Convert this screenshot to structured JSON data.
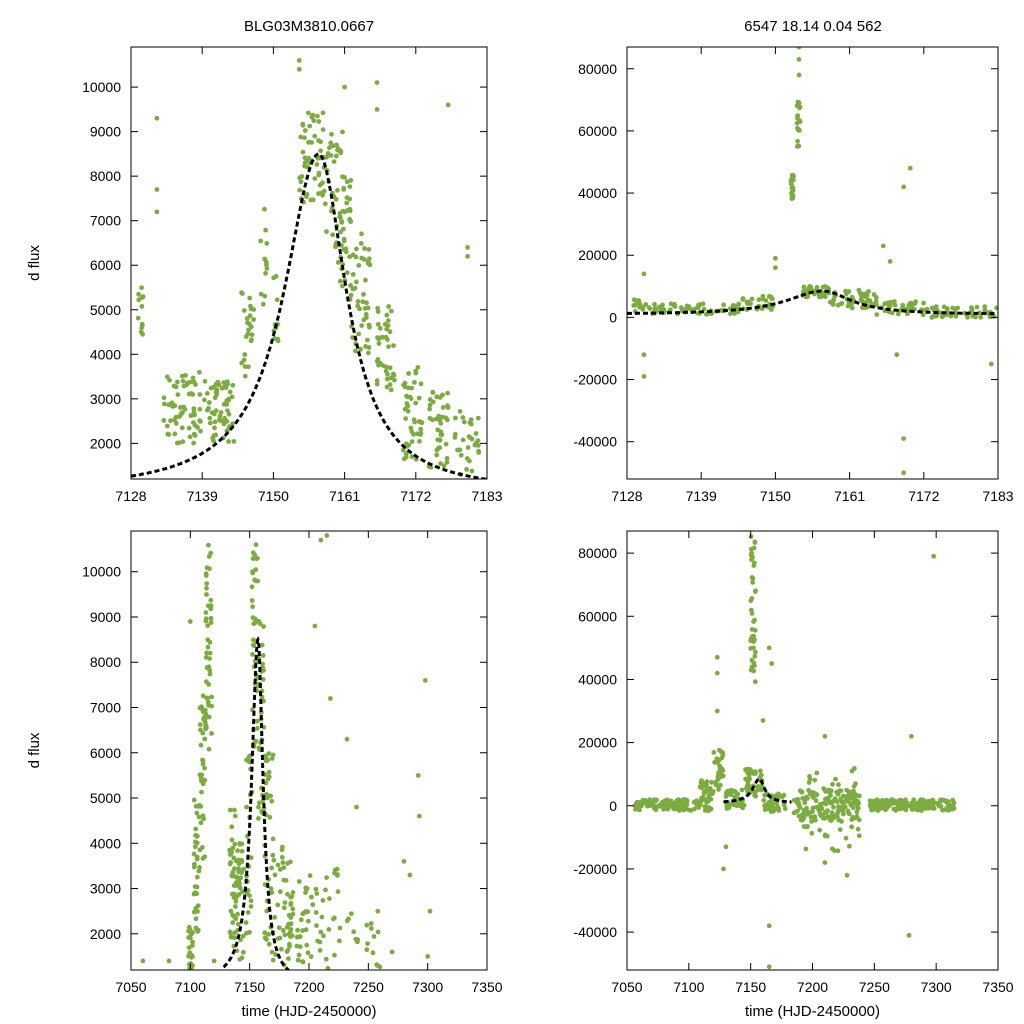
{
  "header": {
    "left_title": "BLG03M3810.0667",
    "right_title": "6547  18.14  0.04  562"
  },
  "colors": {
    "points": "#7cac40",
    "fit": "#000000",
    "frame": "#000000"
  },
  "chart_data": [
    {
      "id": "top-left",
      "type": "scatter",
      "xlim": [
        7128,
        7183
      ],
      "ylim": [
        1200,
        10900
      ],
      "xticks": [
        7128,
        7139,
        7150,
        7161,
        7172,
        7183
      ],
      "yticks": [
        2000,
        3000,
        4000,
        5000,
        6000,
        7000,
        8000,
        9000,
        10000
      ],
      "ylabel": "d flux",
      "xlabel": "",
      "fit": {
        "t0": 7157.0,
        "peak": 8500,
        "base": 900,
        "tau_rise": 6.5,
        "tau_fall": 5.2
      },
      "clusters": [
        [
          7129,
          7130,
          4200,
          5500,
          12
        ],
        [
          7133,
          7140,
          2000,
          3600,
          70
        ],
        [
          7140,
          7144,
          2000,
          3400,
          55
        ],
        [
          7145,
          7147,
          3500,
          5400,
          25
        ],
        [
          7148,
          7149,
          5000,
          7300,
          12
        ],
        [
          7150,
          7151,
          4200,
          6000,
          10
        ],
        [
          7154,
          7158,
          7400,
          9500,
          55
        ],
        [
          7158,
          7161,
          6400,
          9000,
          40
        ],
        [
          7160,
          7162,
          5200,
          8000,
          35
        ],
        [
          7162,
          7165,
          4000,
          6800,
          45
        ],
        [
          7166,
          7169,
          3200,
          5200,
          40
        ],
        [
          7170,
          7173,
          1600,
          3800,
          45
        ],
        [
          7174,
          7177,
          1400,
          3200,
          40
        ],
        [
          7178,
          7182,
          1300,
          2800,
          30
        ]
      ],
      "outliers": [
        [
          7132,
          9300
        ],
        [
          7132,
          7700
        ],
        [
          7132,
          7200
        ],
        [
          7154,
          10600
        ],
        [
          7154,
          10400
        ],
        [
          7161,
          10000
        ],
        [
          7166,
          10100
        ],
        [
          7166,
          9500
        ],
        [
          7177,
          9600
        ],
        [
          7180,
          6400
        ],
        [
          7180,
          6200
        ]
      ]
    },
    {
      "id": "top-right",
      "type": "scatter",
      "xlim": [
        7128,
        7183
      ],
      "ylim": [
        -52000,
        87000
      ],
      "xticks": [
        7128,
        7139,
        7150,
        7161,
        7172,
        7183
      ],
      "yticks": [
        -40000,
        -20000,
        0,
        20000,
        40000,
        60000,
        80000
      ],
      "ylabel": "",
      "xlabel": "",
      "fit": {
        "t0": 7157.0,
        "peak": 8500,
        "base": 900,
        "tau_rise": 6.5,
        "tau_fall": 5.2
      },
      "clusters": [
        [
          7129,
          7131,
          1500,
          6000,
          12
        ],
        [
          7131,
          7145,
          1000,
          4500,
          70
        ],
        [
          7145,
          7150,
          2500,
          7000,
          30
        ],
        [
          7154,
          7158,
          6500,
          10000,
          40
        ],
        [
          7158,
          7165,
          3000,
          9000,
          50
        ],
        [
          7165,
          7172,
          800,
          5500,
          40
        ],
        [
          7172,
          7183,
          0,
          3500,
          50
        ],
        [
          7152.3,
          7152.7,
          38000,
          46000,
          20
        ],
        [
          7153.2,
          7153.7,
          55000,
          70000,
          18
        ]
      ],
      "outliers": [
        [
          7130.5,
          14000
        ],
        [
          7130.5,
          -12000
        ],
        [
          7130.5,
          -19000
        ],
        [
          7150,
          19000
        ],
        [
          7150,
          16000
        ],
        [
          7153.5,
          87000
        ],
        [
          7153.5,
          83000
        ],
        [
          7153.5,
          78000
        ],
        [
          7166,
          23000
        ],
        [
          7167,
          18000
        ],
        [
          7169,
          42000
        ],
        [
          7170,
          48000
        ],
        [
          7168,
          -12000
        ],
        [
          7169,
          -39000
        ],
        [
          7169,
          -50000
        ],
        [
          7182,
          -15000
        ]
      ]
    },
    {
      "id": "bottom-left",
      "type": "scatter",
      "xlim": [
        7050,
        7350
      ],
      "ylim": [
        1200,
        10900
      ],
      "xticks": [
        7050,
        7100,
        7150,
        7200,
        7250,
        7300,
        7350
      ],
      "yticks": [
        2000,
        3000,
        4000,
        5000,
        6000,
        7000,
        8000,
        9000,
        10000
      ],
      "ylabel": "d flux",
      "xlabel": "time (HJD-2450000)",
      "fit": {
        "t0": 7157.0,
        "peak": 8500,
        "base": 900,
        "tau_rise": 6.5,
        "tau_fall": 5.2,
        "xrange": [
          7128,
          7183
        ]
      },
      "clusters": [
        [
          7098,
          7102,
          1200,
          2200,
          20
        ],
        [
          7103,
          7108,
          2000,
          5000,
          35
        ],
        [
          7108,
          7113,
          3500,
          7500,
          40
        ],
        [
          7113,
          7118,
          6000,
          10600,
          45
        ],
        [
          7133,
          7138,
          1600,
          5200,
          35
        ],
        [
          7138,
          7145,
          1400,
          4000,
          40
        ],
        [
          7147,
          7152,
          2000,
          6000,
          25
        ],
        [
          7152,
          7157,
          6000,
          10600,
          40
        ],
        [
          7157,
          7162,
          4500,
          9000,
          35
        ],
        [
          7162,
          7170,
          1400,
          6000,
          45
        ],
        [
          7170,
          7185,
          1300,
          4000,
          45
        ],
        [
          7185,
          7200,
          1200,
          3200,
          30
        ],
        [
          7200,
          7225,
          1200,
          3500,
          30
        ],
        [
          7225,
          7260,
          1200,
          2500,
          20
        ]
      ],
      "outliers": [
        [
          7060,
          1400
        ],
        [
          7082,
          1400
        ],
        [
          7100,
          8900
        ],
        [
          7120,
          1400
        ],
        [
          7210,
          10700
        ],
        [
          7215,
          10800
        ],
        [
          7205,
          8800
        ],
        [
          7218,
          7200
        ],
        [
          7232,
          6300
        ],
        [
          7240,
          4800
        ],
        [
          7258,
          2500
        ],
        [
          7270,
          1600
        ],
        [
          7280,
          3600
        ],
        [
          7285,
          3300
        ],
        [
          7292,
          5500
        ],
        [
          7293,
          4600
        ],
        [
          7298,
          7600
        ],
        [
          7302,
          2500
        ],
        [
          7300,
          1500
        ]
      ]
    },
    {
      "id": "bottom-right",
      "type": "scatter",
      "xlim": [
        7050,
        7350
      ],
      "ylim": [
        -52000,
        87000
      ],
      "xticks": [
        7050,
        7100,
        7150,
        7200,
        7250,
        7300,
        7350
      ],
      "yticks": [
        -40000,
        -20000,
        0,
        20000,
        40000,
        60000,
        80000
      ],
      "ylabel": "",
      "xlabel": "time (HJD-2450000)",
      "fit": {
        "t0": 7157.0,
        "peak": 8500,
        "base": 900,
        "tau_rise": 6.5,
        "tau_fall": 5.2,
        "xrange": [
          7128,
          7183
        ]
      },
      "clusters": [
        [
          7056,
          7118,
          -1500,
          2000,
          120
        ],
        [
          7108,
          7120,
          1500,
          8000,
          35
        ],
        [
          7120,
          7128,
          5000,
          18000,
          30
        ],
        [
          7130,
          7145,
          -1000,
          5000,
          40
        ],
        [
          7145,
          7160,
          3000,
          12000,
          40
        ],
        [
          7160,
          7178,
          -2000,
          4000,
          40
        ],
        [
          7185,
          7238,
          -5000,
          5000,
          140
        ],
        [
          7192,
          7238,
          -15000,
          12000,
          50
        ],
        [
          7246,
          7315,
          -1500,
          2000,
          160
        ],
        [
          7150,
          7154,
          38000,
          60000,
          25
        ],
        [
          7150,
          7154,
          60000,
          86000,
          20
        ]
      ],
      "outliers": [
        [
          7123,
          47000
        ],
        [
          7123,
          42000
        ],
        [
          7123,
          30000
        ],
        [
          7160,
          27000
        ],
        [
          7165,
          50000
        ],
        [
          7167,
          45000
        ],
        [
          7130,
          -13000
        ],
        [
          7128,
          -20000
        ],
        [
          7165,
          -38000
        ],
        [
          7165,
          -51000
        ],
        [
          7210,
          22000
        ],
        [
          7232,
          11000
        ],
        [
          7228,
          -22000
        ],
        [
          7210,
          -18000
        ],
        [
          7280,
          22000
        ],
        [
          7278,
          -41000
        ],
        [
          7298,
          79000
        ]
      ]
    }
  ]
}
